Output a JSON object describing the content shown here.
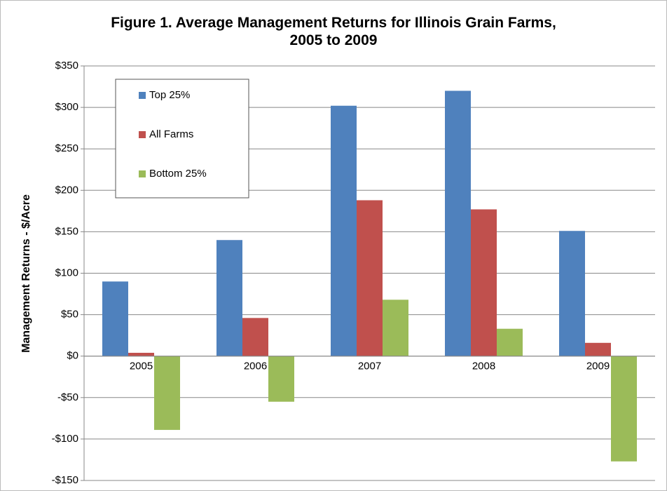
{
  "chart_data": {
    "type": "bar",
    "title": "Figure 1. Average Management Returns for Illinois Grain Farms, 2005 to 2009",
    "ylabel": "Management Returns - $/Acre",
    "categories": [
      "2005",
      "2006",
      "2007",
      "2008",
      "2009"
    ],
    "series": [
      {
        "name": "Top 25%",
        "color": "#4f81bd",
        "values": [
          90,
          140,
          302,
          320,
          151
        ]
      },
      {
        "name": "All Farms",
        "color": "#c0504d",
        "values": [
          4,
          46,
          188,
          177,
          16
        ]
      },
      {
        "name": "Bottom 25%",
        "color": "#9bbb59",
        "values": [
          -89,
          -55,
          68,
          33,
          -127
        ]
      }
    ],
    "ylim": [
      -150,
      350
    ],
    "yticks": [
      {
        "value": -150,
        "label": "-$150"
      },
      {
        "value": -100,
        "label": "-$100"
      },
      {
        "value": -50,
        "label": "-$50"
      },
      {
        "value": 0,
        "label": "$0"
      },
      {
        "value": 50,
        "label": "$50"
      },
      {
        "value": 100,
        "label": "$100"
      },
      {
        "value": 150,
        "label": "$150"
      },
      {
        "value": 200,
        "label": "$200"
      },
      {
        "value": 250,
        "label": "$250"
      },
      {
        "value": 300,
        "label": "$300"
      },
      {
        "value": 350,
        "label": "$350"
      }
    ],
    "grid": true,
    "legend": "upper left"
  }
}
